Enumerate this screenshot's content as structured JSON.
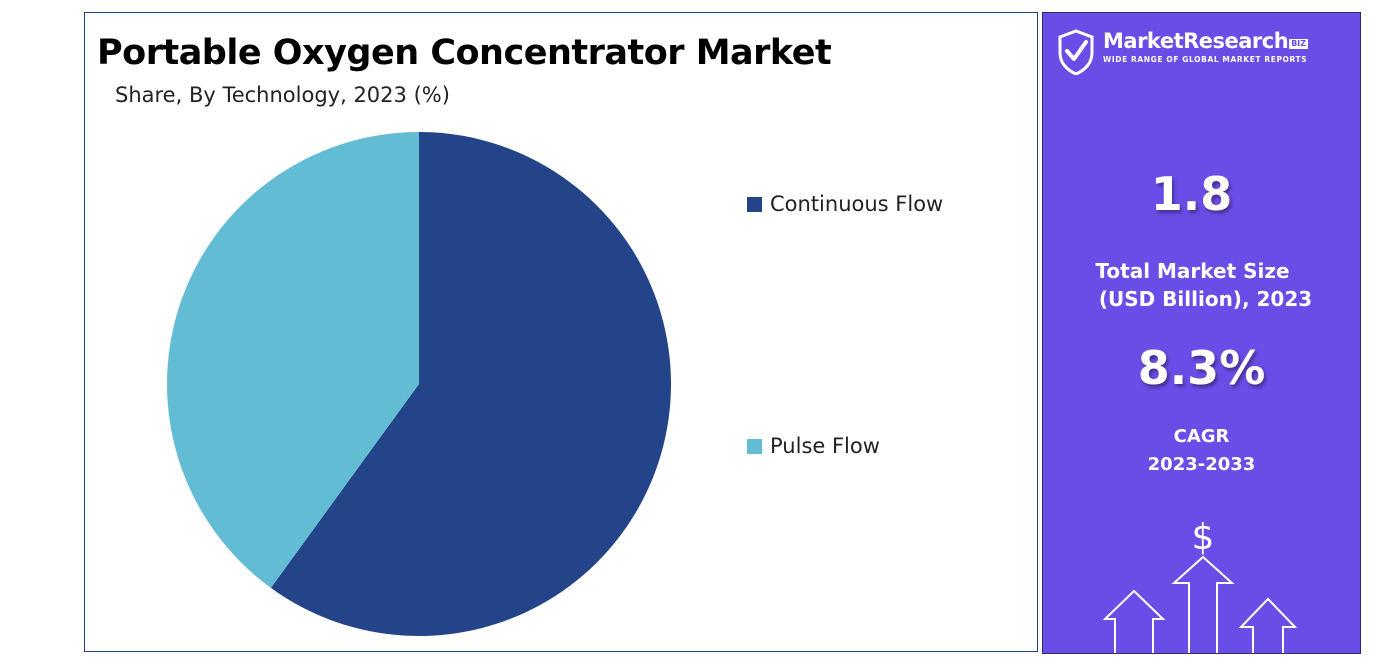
{
  "chart_data": {
    "type": "pie",
    "title": "Portable Oxygen Concentrator Market",
    "subtitle": "Share, By Technology, 2023 (%)",
    "categories": [
      "Continuous Flow",
      "Pulse Flow"
    ],
    "values": [
      60,
      40
    ],
    "colors": [
      "#24448a",
      "#62bdd4"
    ],
    "legend_position": "right"
  },
  "brand": {
    "name": "MarketResearch",
    "badge": "BIZ",
    "tagline": "WIDE RANGE OF GLOBAL MARKET REPORTS"
  },
  "stats": {
    "market_size_value": "1.8",
    "market_size_label_line1": "Total Market Size",
    "market_size_label_line2": "(USD Billion), 2023",
    "cagr_value": "8.3%",
    "cagr_label_line1": "CAGR",
    "cagr_label_line2": "2023-2033"
  },
  "icons": {
    "logo": "checkmark-shield-icon",
    "growth": "dollar-growth-arrows-icon",
    "dollar_symbol": "$"
  },
  "theme": {
    "side_panel_bg": "#6a4ce6",
    "frame": "#24427f"
  }
}
